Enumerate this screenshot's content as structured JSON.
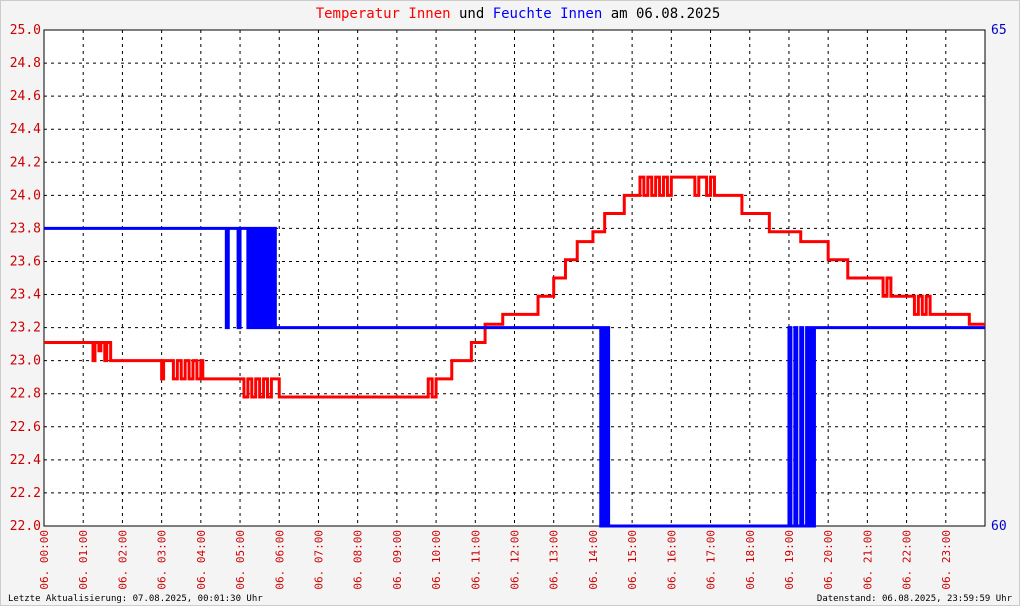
{
  "title": {
    "part1": "Temperatur Innen",
    "part2": " und ",
    "part3": "Feuchte Innen",
    "part4": " am 06.08.2025"
  },
  "footer": {
    "left": "Letzte Aktualisierung: 07.08.2025, 00:01:30 Uhr",
    "right": "Datenstand: 06.08.2025, 23:59:59 Uhr"
  },
  "colors": {
    "temperature": "#ff0000",
    "humidity": "#0000ff",
    "left_axis_text": "#cc0000",
    "right_axis_text": "#0000cc",
    "plot_background": "#ffffff",
    "page_background": "#f4f4f4"
  },
  "chart_data": {
    "type": "line",
    "x_unit": "hour of day",
    "xlim": [
      0,
      24
    ],
    "x_tick_labels": [
      "06. 00:00",
      "06. 01:00",
      "06. 02:00",
      "06. 03:00",
      "06. 04:00",
      "06. 05:00",
      "06. 06:00",
      "06. 07:00",
      "06. 08:00",
      "06. 09:00",
      "06. 10:00",
      "06. 11:00",
      "06. 12:00",
      "06. 13:00",
      "06. 14:00",
      "06. 15:00",
      "06. 16:00",
      "06. 17:00",
      "06. 18:00",
      "06. 19:00",
      "06. 20:00",
      "06. 21:00",
      "06. 22:00",
      "06. 23:00"
    ],
    "y_left": {
      "ylim": [
        22.0,
        25.0
      ],
      "ticks": [
        "22.0",
        "22.2",
        "22.4",
        "22.6",
        "22.8",
        "23.0",
        "23.2",
        "23.4",
        "23.6",
        "23.8",
        "24.0",
        "24.2",
        "24.4",
        "24.6",
        "24.8",
        "25.0"
      ]
    },
    "y_right": {
      "ylim": [
        60,
        65
      ],
      "ticks": [
        "60",
        "65"
      ]
    },
    "grid": true,
    "series": [
      {
        "name": "Temperatur Innen",
        "axis": "left",
        "step": true,
        "points": [
          [
            0.0,
            23.11
          ],
          [
            1.25,
            23.11
          ],
          [
            1.25,
            23.0
          ],
          [
            1.3,
            23.0
          ],
          [
            1.3,
            23.11
          ],
          [
            1.4,
            23.11
          ],
          [
            1.4,
            23.06
          ],
          [
            1.45,
            23.06
          ],
          [
            1.45,
            23.11
          ],
          [
            1.55,
            23.11
          ],
          [
            1.55,
            23.0
          ],
          [
            1.6,
            23.0
          ],
          [
            1.6,
            23.11
          ],
          [
            1.7,
            23.11
          ],
          [
            1.7,
            23.0
          ],
          [
            3.0,
            23.0
          ],
          [
            3.0,
            22.89
          ],
          [
            3.05,
            22.89
          ],
          [
            3.05,
            23.0
          ],
          [
            3.3,
            23.0
          ],
          [
            3.3,
            22.89
          ],
          [
            3.4,
            22.89
          ],
          [
            3.4,
            23.0
          ],
          [
            3.5,
            23.0
          ],
          [
            3.5,
            22.89
          ],
          [
            3.6,
            22.89
          ],
          [
            3.6,
            23.0
          ],
          [
            3.7,
            23.0
          ],
          [
            3.7,
            22.89
          ],
          [
            3.8,
            22.89
          ],
          [
            3.8,
            23.0
          ],
          [
            3.9,
            23.0
          ],
          [
            3.9,
            22.89
          ],
          [
            4.0,
            22.89
          ],
          [
            4.0,
            23.0
          ],
          [
            4.05,
            23.0
          ],
          [
            4.05,
            22.89
          ],
          [
            5.1,
            22.89
          ],
          [
            5.1,
            22.78
          ],
          [
            5.2,
            22.78
          ],
          [
            5.2,
            22.89
          ],
          [
            5.3,
            22.89
          ],
          [
            5.3,
            22.78
          ],
          [
            5.4,
            22.78
          ],
          [
            5.4,
            22.89
          ],
          [
            5.5,
            22.89
          ],
          [
            5.5,
            22.78
          ],
          [
            5.6,
            22.78
          ],
          [
            5.6,
            22.89
          ],
          [
            5.7,
            22.89
          ],
          [
            5.7,
            22.78
          ],
          [
            5.8,
            22.78
          ],
          [
            5.8,
            22.89
          ],
          [
            6.0,
            22.89
          ],
          [
            6.0,
            22.78
          ],
          [
            9.8,
            22.78
          ],
          [
            9.8,
            22.89
          ],
          [
            9.9,
            22.89
          ],
          [
            9.9,
            22.78
          ],
          [
            10.0,
            22.78
          ],
          [
            10.0,
            22.89
          ],
          [
            10.4,
            22.89
          ],
          [
            10.4,
            23.0
          ],
          [
            10.9,
            23.0
          ],
          [
            10.9,
            23.11
          ],
          [
            11.25,
            23.11
          ],
          [
            11.25,
            23.22
          ],
          [
            11.7,
            23.22
          ],
          [
            11.7,
            23.28
          ],
          [
            12.6,
            23.28
          ],
          [
            12.6,
            23.39
          ],
          [
            13.0,
            23.39
          ],
          [
            13.0,
            23.5
          ],
          [
            13.3,
            23.5
          ],
          [
            13.3,
            23.61
          ],
          [
            13.6,
            23.61
          ],
          [
            13.6,
            23.72
          ],
          [
            14.0,
            23.72
          ],
          [
            14.0,
            23.78
          ],
          [
            14.3,
            23.78
          ],
          [
            14.3,
            23.89
          ],
          [
            14.8,
            23.89
          ],
          [
            14.8,
            24.0
          ],
          [
            15.2,
            24.0
          ],
          [
            15.2,
            24.11
          ],
          [
            15.3,
            24.11
          ],
          [
            15.3,
            24.0
          ],
          [
            15.4,
            24.0
          ],
          [
            15.4,
            24.11
          ],
          [
            15.5,
            24.11
          ],
          [
            15.5,
            24.0
          ],
          [
            15.6,
            24.0
          ],
          [
            15.6,
            24.11
          ],
          [
            15.7,
            24.11
          ],
          [
            15.7,
            24.0
          ],
          [
            15.8,
            24.0
          ],
          [
            15.8,
            24.11
          ],
          [
            15.9,
            24.11
          ],
          [
            15.9,
            24.0
          ],
          [
            16.0,
            24.0
          ],
          [
            16.0,
            24.11
          ],
          [
            16.6,
            24.11
          ],
          [
            16.6,
            24.0
          ],
          [
            16.7,
            24.0
          ],
          [
            16.7,
            24.11
          ],
          [
            16.9,
            24.11
          ],
          [
            16.9,
            24.0
          ],
          [
            17.0,
            24.0
          ],
          [
            17.0,
            24.11
          ],
          [
            17.1,
            24.11
          ],
          [
            17.1,
            24.0
          ],
          [
            17.8,
            24.0
          ],
          [
            17.8,
            23.89
          ],
          [
            18.5,
            23.89
          ],
          [
            18.5,
            23.78
          ],
          [
            19.3,
            23.78
          ],
          [
            19.3,
            23.72
          ],
          [
            20.0,
            23.72
          ],
          [
            20.0,
            23.61
          ],
          [
            20.5,
            23.61
          ],
          [
            20.5,
            23.5
          ],
          [
            21.4,
            23.5
          ],
          [
            21.4,
            23.39
          ],
          [
            21.5,
            23.39
          ],
          [
            21.5,
            23.5
          ],
          [
            21.6,
            23.5
          ],
          [
            21.6,
            23.39
          ],
          [
            22.2,
            23.39
          ],
          [
            22.2,
            23.28
          ],
          [
            22.3,
            23.28
          ],
          [
            22.3,
            23.39
          ],
          [
            22.4,
            23.39
          ],
          [
            22.4,
            23.28
          ],
          [
            22.5,
            23.28
          ],
          [
            22.5,
            23.39
          ],
          [
            22.6,
            23.39
          ],
          [
            22.6,
            23.28
          ],
          [
            23.6,
            23.28
          ],
          [
            23.6,
            23.22
          ],
          [
            24.0,
            23.22
          ]
        ]
      },
      {
        "name": "Feuchte Innen",
        "axis": "right",
        "step": true,
        "points": [
          [
            0.0,
            63
          ],
          [
            4.65,
            63
          ],
          [
            4.65,
            62
          ],
          [
            4.7,
            62
          ],
          [
            4.7,
            63
          ],
          [
            4.95,
            63
          ],
          [
            4.95,
            62
          ],
          [
            5.0,
            62
          ],
          [
            5.0,
            63
          ],
          [
            5.2,
            63
          ],
          [
            5.2,
            62
          ],
          [
            5.25,
            62
          ],
          [
            5.25,
            63
          ],
          [
            5.3,
            63
          ],
          [
            5.3,
            62
          ],
          [
            5.35,
            62
          ],
          [
            5.35,
            63
          ],
          [
            5.4,
            63
          ],
          [
            5.4,
            62
          ],
          [
            5.45,
            62
          ],
          [
            5.45,
            63
          ],
          [
            5.5,
            63
          ],
          [
            5.5,
            62
          ],
          [
            5.55,
            62
          ],
          [
            5.55,
            63
          ],
          [
            5.6,
            63
          ],
          [
            5.6,
            62
          ],
          [
            5.65,
            62
          ],
          [
            5.65,
            63
          ],
          [
            5.7,
            63
          ],
          [
            5.7,
            62
          ],
          [
            5.75,
            62
          ],
          [
            5.75,
            63
          ],
          [
            5.8,
            63
          ],
          [
            5.8,
            62
          ],
          [
            5.85,
            62
          ],
          [
            5.85,
            63
          ],
          [
            5.9,
            63
          ],
          [
            5.9,
            62
          ],
          [
            14.2,
            62
          ],
          [
            14.2,
            60
          ],
          [
            14.25,
            60
          ],
          [
            14.25,
            62
          ],
          [
            14.3,
            62
          ],
          [
            14.3,
            60
          ],
          [
            14.35,
            60
          ],
          [
            14.35,
            62
          ],
          [
            14.4,
            62
          ],
          [
            14.4,
            60
          ],
          [
            19.0,
            60
          ],
          [
            19.0,
            62
          ],
          [
            19.05,
            62
          ],
          [
            19.05,
            60
          ],
          [
            19.15,
            60
          ],
          [
            19.15,
            62
          ],
          [
            19.2,
            62
          ],
          [
            19.2,
            60
          ],
          [
            19.3,
            60
          ],
          [
            19.3,
            62
          ],
          [
            19.35,
            62
          ],
          [
            19.35,
            60
          ],
          [
            19.45,
            60
          ],
          [
            19.45,
            62
          ],
          [
            19.5,
            62
          ],
          [
            19.5,
            60
          ],
          [
            19.55,
            60
          ],
          [
            19.55,
            62
          ],
          [
            19.6,
            62
          ],
          [
            19.6,
            60
          ],
          [
            19.65,
            60
          ],
          [
            19.65,
            62
          ],
          [
            24.0,
            62
          ]
        ]
      }
    ]
  }
}
